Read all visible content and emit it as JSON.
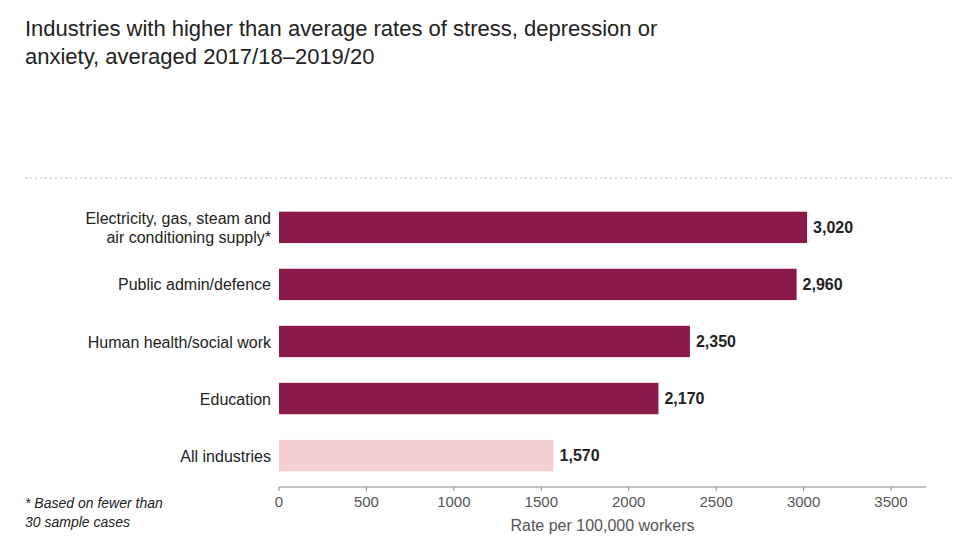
{
  "chart_data": {
    "type": "bar",
    "orientation": "horizontal",
    "title": "Industries with higher than average rates of stress, depression or\nanxiety, averaged 2017/18–2019/20",
    "categories": [
      "All industries",
      "Education",
      "Human health/social work",
      "Public admin/defence",
      "Electricity, gas, steam and\nair conditioning supply*"
    ],
    "values": [
      1570,
      2170,
      2350,
      2960,
      3020
    ],
    "value_labels": [
      "1,570",
      "2,170",
      "2,350",
      "2,960",
      "3,020"
    ],
    "data_labels": true,
    "colors": [
      "#f5d0d0",
      "#8b1a4a",
      "#8b1a4a",
      "#8b1a4a",
      "#8b1a4a"
    ],
    "xlim": [
      0,
      3700
    ],
    "xticks": [
      0,
      500,
      1000,
      1500,
      2000,
      2500,
      3000,
      3500
    ],
    "xlabel": "Rate per 100,000 workers",
    "footnote": "* Based on fewer than\n30 sample cases",
    "grid": false
  }
}
